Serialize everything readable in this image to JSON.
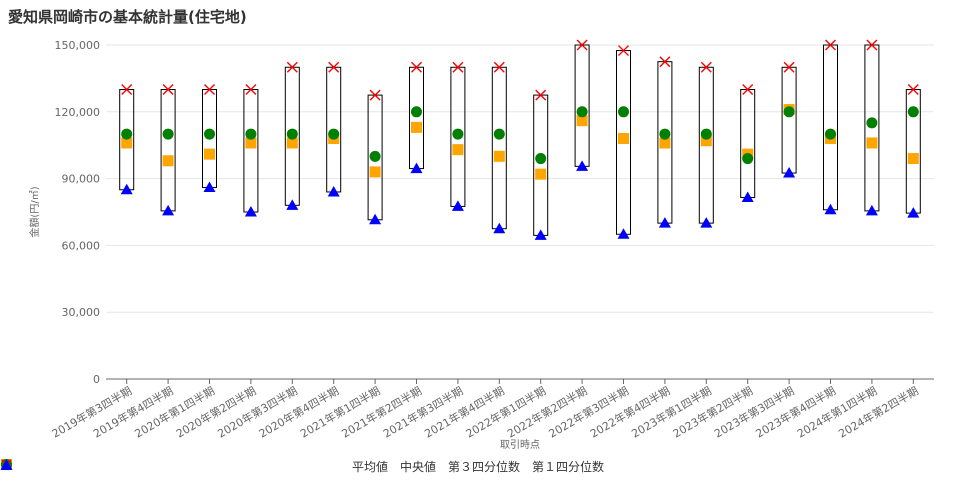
{
  "title": "愛知県岡崎市の基本統計量(住宅地)",
  "chart_data": {
    "type": "scatter",
    "title": "愛知県岡崎市の基本統計量(住宅地)",
    "xlabel": "取引時点",
    "ylabel": "金額(円/㎡)",
    "ylim": [
      0,
      150000
    ],
    "yticks": [
      0,
      30000,
      60000,
      90000,
      120000,
      150000
    ],
    "ytick_labels": [
      "0",
      "30,000",
      "60,000",
      "90,000",
      "120,000",
      "150,000"
    ],
    "grid": true,
    "legend_position": "bottom",
    "categories": [
      "2019年第3四半期",
      "2019年第4四半期",
      "2020年第1四半期",
      "2020年第2四半期",
      "2020年第3四半期",
      "2020年第4四半期",
      "2021年第1四半期",
      "2021年第2四半期",
      "2021年第3四半期",
      "2021年第4四半期",
      "2022年第1四半期",
      "2022年第2四半期",
      "2022年第3四半期",
      "2022年第4四半期",
      "2023年第1四半期",
      "2023年第2四半期",
      "2023年第3四半期",
      "2023年第4四半期",
      "2024年第1四半期",
      "2024年第2四半期"
    ],
    "series": [
      {
        "name": "平均値",
        "marker": "square",
        "color": "#ffa500",
        "values": [
          106000,
          98000,
          101000,
          106000,
          106000,
          108000,
          93000,
          113000,
          103000,
          100000,
          92000,
          116000,
          108000,
          106000,
          107000,
          101000,
          121000,
          108000,
          106000,
          99000
        ]
      },
      {
        "name": "中央値",
        "marker": "circle",
        "color": "#008000",
        "values": [
          110000,
          110000,
          110000,
          110000,
          110000,
          110000,
          100000,
          120000,
          110000,
          110000,
          99000,
          120000,
          120000,
          110000,
          110000,
          99000,
          120000,
          110000,
          115000,
          120000
        ]
      },
      {
        "name": "第３四分位数",
        "marker": "x",
        "color": "#ff0000",
        "values": [
          130000,
          130000,
          130000,
          130000,
          140000,
          140000,
          127500,
          140000,
          140000,
          140000,
          127500,
          150000,
          147500,
          142500,
          140000,
          130000,
          140000,
          150000,
          150000,
          130000
        ]
      },
      {
        "name": "第１四分位数",
        "marker": "triangle",
        "color": "#0000ff",
        "values": [
          85000,
          75500,
          86000,
          75000,
          78000,
          84000,
          71500,
          94500,
          77500,
          67500,
          64500,
          95500,
          65000,
          70000,
          70000,
          81500,
          92500,
          76000,
          75500,
          74500
        ]
      }
    ]
  }
}
